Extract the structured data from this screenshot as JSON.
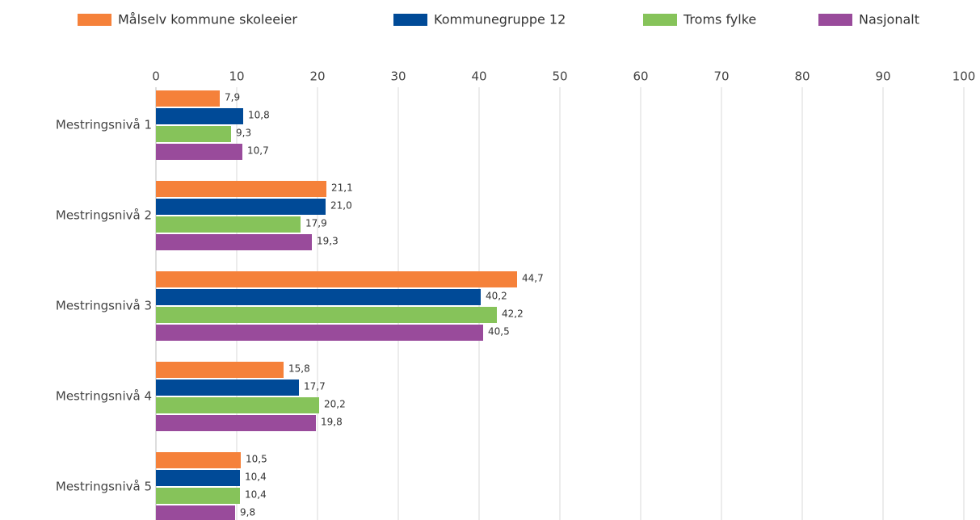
{
  "chart_data": {
    "type": "bar",
    "orientation": "horizontal",
    "categories": [
      "Mestringsnivå 1",
      "Mestringsnivå 2",
      "Mestringsnivå 3",
      "Mestringsnivå 4",
      "Mestringsnivå 5"
    ],
    "series": [
      {
        "name": "Målselv kommune skoleeier",
        "color": "#f5813a",
        "values": [
          7.9,
          21.1,
          44.7,
          15.8,
          10.5
        ],
        "value_labels": [
          "7,9",
          "21,1",
          "44,7",
          "15,8",
          "10,5"
        ]
      },
      {
        "name": "Kommunegruppe 12",
        "color": "#004a97",
        "values": [
          10.8,
          21.0,
          40.2,
          17.7,
          10.4
        ],
        "value_labels": [
          "10,8",
          "21,0",
          "40,2",
          "17,7",
          "10,4"
        ]
      },
      {
        "name": "Troms fylke",
        "color": "#86c35a",
        "values": [
          9.3,
          17.9,
          42.2,
          20.2,
          10.4
        ],
        "value_labels": [
          "9,3",
          "17,9",
          "42,2",
          "20,2",
          "10,4"
        ]
      },
      {
        "name": "Nasjonalt",
        "color": "#994b9b",
        "values": [
          10.7,
          19.3,
          40.5,
          19.8,
          9.8
        ],
        "value_labels": [
          "10,7",
          "19,3",
          "40,5",
          "19,8",
          "9,8"
        ]
      }
    ],
    "xlim": [
      0,
      100
    ],
    "xticks": [
      0,
      10,
      20,
      30,
      40,
      50,
      60,
      70,
      80,
      90,
      100
    ],
    "grid": true,
    "legend": "top"
  }
}
